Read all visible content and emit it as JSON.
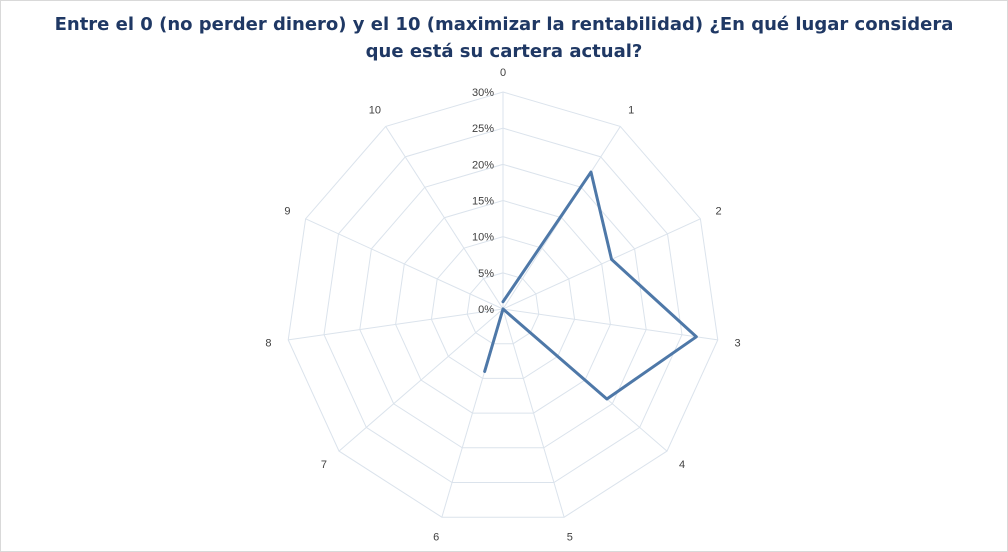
{
  "chart_data": {
    "type": "radar",
    "title_lines": [
      "Entre el 0 (no perder dinero) y el 10 (maximizar la rentabilidad)  ¿En qué lugar considera",
      "que está su cartera actual?"
    ],
    "categories": [
      "0",
      "1",
      "2",
      "3",
      "4",
      "5",
      "6",
      "7",
      "8",
      "9",
      "10"
    ],
    "series": [
      {
        "values": [
          0.01,
          0.225,
          0.165,
          0.27,
          0.19,
          0.0,
          0.09,
          0.0,
          0.0,
          0.0,
          0.0
        ]
      }
    ],
    "rlim": [
      0,
      0.3
    ],
    "ticks": [
      "0%",
      "5%",
      "10%",
      "15%",
      "20%",
      "25%",
      "30%"
    ],
    "tick_values": [
      0,
      0.05,
      0.1,
      0.15,
      0.2,
      0.25,
      0.3
    ],
    "grid": true,
    "closed": false,
    "colors": {
      "series": "#4e78a8",
      "grid": "#dbe3ec",
      "title": "#1f3864"
    }
  }
}
